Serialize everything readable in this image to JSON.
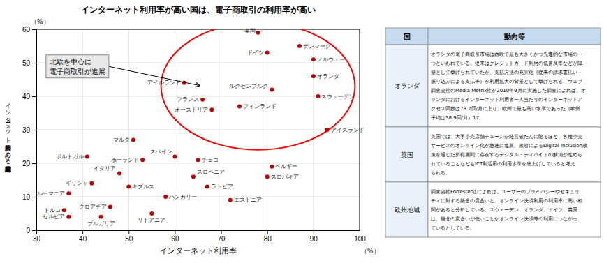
{
  "chart_data": {
    "type": "scatter",
    "title": "インターネット利用率が高い国は、電子商取引の利用率が高い",
    "xlabel": "インターネット利用率",
    "ylabel": "インターネット利用者数に占める電子商取引利用者比率",
    "x_unit_label": "（%）",
    "y_unit_label": "（%）",
    "xlim": [
      30,
      100
    ],
    "ylim": [
      0,
      60
    ],
    "xticks": [
      30,
      40,
      50,
      60,
      70,
      80,
      90,
      100
    ],
    "yticks": [
      0,
      10,
      20,
      30,
      40,
      50,
      60
    ],
    "grid": true,
    "color": "#c00000",
    "marker": "circle",
    "annotation": "北欧を中心に\n電子商取引が進展",
    "highlight": {
      "cx": 78,
      "cy": 43,
      "rx": 21,
      "ry": 19,
      "color": "red"
    },
    "point_labels": [
      "英国",
      "デンマーク",
      "ドイツ",
      "ノルウェー",
      "オランダ",
      "ルクセンブルク",
      "スウェーデン",
      "フランス",
      "フィンランド",
      "オーストリア",
      "アイルランド",
      "アイスランド",
      "マルタ",
      "スペイン",
      "チェコ",
      "ベルギー",
      "ポーランド",
      "スロベニア",
      "スロバキア",
      "ラトビア",
      "イタリア",
      "ギリシャ",
      "キプルス",
      "ハンガリー",
      "ポルトガル",
      "ルーマニア",
      "トルコ",
      "セルビア",
      "ブルガリア",
      "クロアチア",
      "エストニア",
      "リトアニア"
    ],
    "x": [
      78,
      87,
      80,
      90,
      90,
      81,
      91,
      66,
      74,
      68,
      62,
      93,
      51,
      60,
      65,
      81,
      53,
      64,
      80,
      67,
      48,
      42,
      50,
      58,
      41,
      37,
      36,
      37,
      44,
      46,
      72,
      55
    ],
    "values": [
      59,
      55,
      53,
      51,
      46,
      42,
      40,
      39,
      37,
      36,
      44,
      30,
      27,
      22,
      21,
      19,
      21,
      16,
      16,
      13,
      17,
      14,
      13,
      10,
      22,
      11,
      6,
      4,
      4,
      7,
      9,
      5
    ],
    "table": {
      "columns": [
        "国",
        "動向等"
      ],
      "rows": [
        {
          "label": "オランダ",
          "lines": [
            "オランダの電子商取引市場は西欧で最も大きくかつ先進的な市場の一",
            "つといわれている。従来はクレジットカード利用の低普及率などが障",
            "壁として挙げられていたが、支払方法の充実化（従来の請求書払い・",
            "振り込みによる支払等）が利用拡大の背景として挙げられる。ウェブ",
            "調査会社のMedia Metrix社が2010年9月に実施した調査によれば、オ",
            "ランダにおけるインターネット利用者一人当たりのインターネットア",
            "クセス回数は78.2回/月に上り、欧州で最も高い水準であった（欧州",
            "平均は58.9回/月）17。"
          ]
        },
        {
          "label": "英国",
          "lines": [
            "英国では、大手小売店舗チェーンが経営破たんに陥るほど、各種小売",
            "サービスのオンライン化が急速に進展。政府によるDigital Inclusion政",
            "策を通じた所得層間に存在するデジタル・ディバイドの解消が進めら",
            "れていることなどもICT利活用の利用水準を底上げしていると考え",
            "られる。"
          ]
        },
        {
          "label": "欧州地域",
          "lines": [
            "調査会社Forrester社によれば、ユーザーのプライバシーやセキュリ",
            "ティに対する懸念の度合いと、オンライン決済利用の利用率に高い相",
            "関があると分析している。スウェーデン、オランダ、ドイツ、英国",
            "は、懸念の度合いが低いことがオンライン決済等の利用につながっ",
            "ているとしている。"
          ]
        }
      ]
    }
  }
}
